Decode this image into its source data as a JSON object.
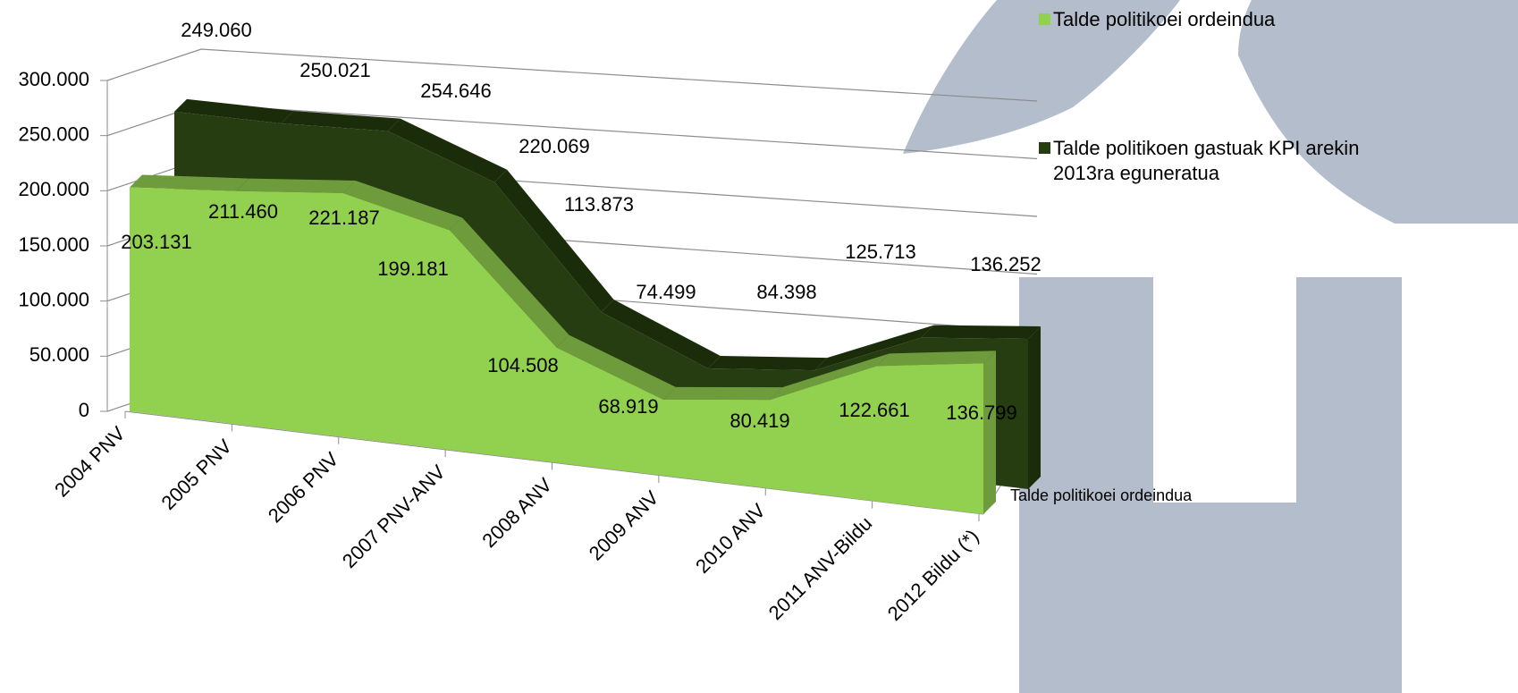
{
  "chart_data": {
    "type": "area3d",
    "categories": [
      "2004 PNV",
      "2005 PNV",
      "2006 PNV",
      "2007 PNV-ANV",
      "2008 ANV",
      "2009 ANV",
      "2010 ANV",
      "2011 ANV-Bildu",
      "2012 Bildu  (*)"
    ],
    "series": [
      {
        "name": "Talde politikoei ordeindua",
        "color": "#92d050",
        "values": [
          203131,
          211460,
          221187,
          199181,
          104508,
          68919,
          80419,
          122661,
          136799
        ],
        "value_labels": [
          "203.131",
          "211.460",
          "221.187",
          "199.181",
          "104.508",
          "68.919",
          "80.419",
          "122.661",
          "136.799"
        ]
      },
      {
        "name": "Talde politikoen gastuak KPI arekin 2013ra eguneratua",
        "color": "#253d10",
        "values": [
          249060,
          250021,
          254646,
          220069,
          113873,
          74499,
          84398,
          125713,
          136252
        ],
        "value_labels": [
          "249.060",
          "250.021",
          "254.646",
          "220.069",
          "113.873",
          "74.499",
          "84.398",
          "125.713",
          "136.252"
        ]
      }
    ],
    "ylim": [
      0,
      300000
    ],
    "yticks": [
      0,
      {
        "value": 50000,
        "label": "50.000"
      },
      {
        "value": 100000,
        "label": "100.000"
      },
      {
        "value": 150000,
        "label": "150.000"
      },
      {
        "value": 200000,
        "label": "200.000"
      },
      {
        "value": 250000,
        "label": "250.000"
      },
      {
        "value": 300000,
        "label": "300.000"
      }
    ],
    "grid": true,
    "legend": "right"
  }
}
